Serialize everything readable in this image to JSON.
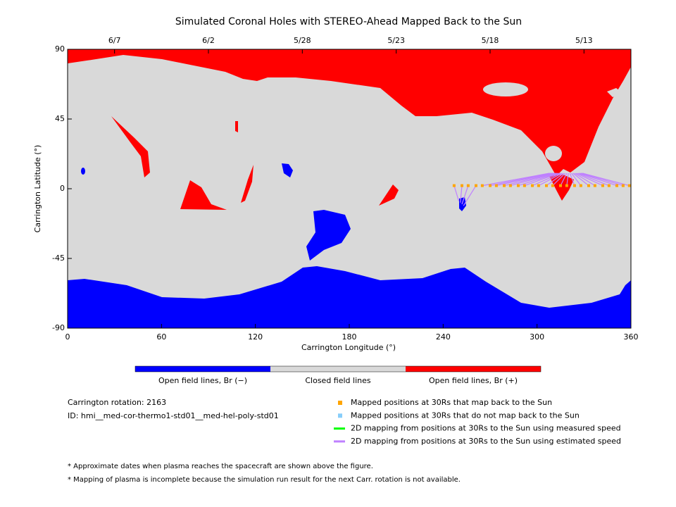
{
  "chart_data": {
    "type": "scatter",
    "title": "Simulated Coronal Holes with STEREO-Ahead Mapped Back to the Sun",
    "xlabel": "Carrington Longitude (°)",
    "ylabel": "Carrington Latitude (°)",
    "xlim": [
      0,
      360
    ],
    "ylim": [
      -90,
      90
    ],
    "xticks": [
      0,
      60,
      120,
      180,
      240,
      300,
      360
    ],
    "yticks": [
      -90,
      -45,
      0,
      45,
      90
    ],
    "top_ticks": [
      {
        "value": 30,
        "label": "6/7"
      },
      {
        "value": 90,
        "label": "6/2"
      },
      {
        "value": 150,
        "label": "5/28"
      },
      {
        "value": 210,
        "label": "5/23"
      },
      {
        "value": 270,
        "label": "5/18"
      },
      {
        "value": 330,
        "label": "5/13"
      }
    ],
    "colorbar": [
      {
        "label": "Open field lines, Br (−)",
        "color": "#0000ff"
      },
      {
        "label": "Closed field lines",
        "color": "#d9d9d9"
      },
      {
        "label": "Open field lines, Br (+)",
        "color": "#ff0000"
      }
    ],
    "series": [
      {
        "name": "Mapped positions at 30Rs that map back to the Sun",
        "color": "#ffa500",
        "x": [
          247,
          252,
          256,
          261,
          265,
          270,
          274,
          279,
          283,
          288,
          292,
          297,
          301,
          306,
          310,
          315,
          319,
          324,
          328,
          333,
          337,
          342,
          346,
          351,
          355,
          359
        ],
        "y": [
          2,
          2,
          2,
          2,
          2,
          2,
          2,
          2,
          2,
          2,
          2,
          2,
          2,
          2,
          2,
          2,
          2,
          2,
          2,
          2,
          2,
          2,
          2,
          2,
          2,
          2
        ]
      },
      {
        "name": "Mapped positions at 30Rs that do not map back to the Sun",
        "color": "#87cefa",
        "x": [],
        "y": []
      },
      {
        "name": "2D mapping from positions at 30Rs to the Sun using measured speed",
        "color": "#00ff00",
        "x": [],
        "y": []
      },
      {
        "name": "2D mapping from positions at 30Rs to the Sun using estimated speed",
        "color": "#bf80ff",
        "x": [
          250,
          251,
          252,
          253,
          308,
          309,
          310,
          311,
          312,
          313,
          314,
          315,
          316,
          317,
          318,
          319,
          320,
          321,
          322,
          323,
          324,
          325,
          326,
          327,
          328,
          329
        ],
        "y": [
          -8,
          -9,
          -10,
          -11,
          10,
          10,
          10,
          10,
          10,
          10,
          10,
          10,
          10,
          10,
          10,
          10,
          10,
          10,
          10,
          10,
          10,
          10,
          10,
          10,
          10,
          10
        ]
      }
    ],
    "rotation": "Carrington rotation: 2163",
    "run_id": "ID: hmi__med-cor-thermo1-std01__med-hel-poly-std01",
    "notes": [
      "* Approximate dates when plasma reaches the spacecraft are shown above the figure.",
      "* Mapping of plasma is incomplete because the simulation run result for the next Carr. rotation is not available."
    ]
  }
}
